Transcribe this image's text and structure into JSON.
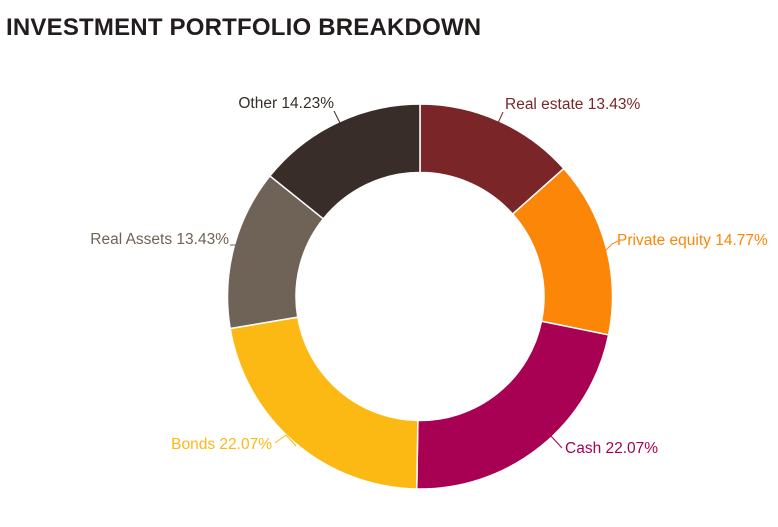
{
  "title": "INVESTMENT PORTFOLIO BREAKDOWN",
  "colors": {
    "title_text": "#221C1D",
    "background": "#FFFFFF",
    "slice_divider": "#FFFFFF"
  },
  "chart_data": {
    "type": "pie",
    "subtype": "donut",
    "title": "INVESTMENT PORTFOLIO BREAKDOWN",
    "start_angle_deg": 0,
    "direction": "clockwise",
    "inner_radius_ratio": 0.645,
    "total": 100,
    "label_format": "{label} {value}%",
    "legend_position": "callout-labels",
    "series": [
      {
        "label": "Real estate",
        "value": 13.43,
        "color": "#7A2628"
      },
      {
        "label": "Private equity",
        "value": 14.77,
        "color": "#FB8607"
      },
      {
        "label": "Cash",
        "value": 22.07,
        "color": "#A80052"
      },
      {
        "label": "Bonds",
        "value": 22.07,
        "color": "#FDB913"
      },
      {
        "label": "Real Assets",
        "value": 13.43,
        "color": "#6F6358"
      },
      {
        "label": "Other",
        "value": 14.23,
        "color": "#382D29"
      }
    ]
  }
}
